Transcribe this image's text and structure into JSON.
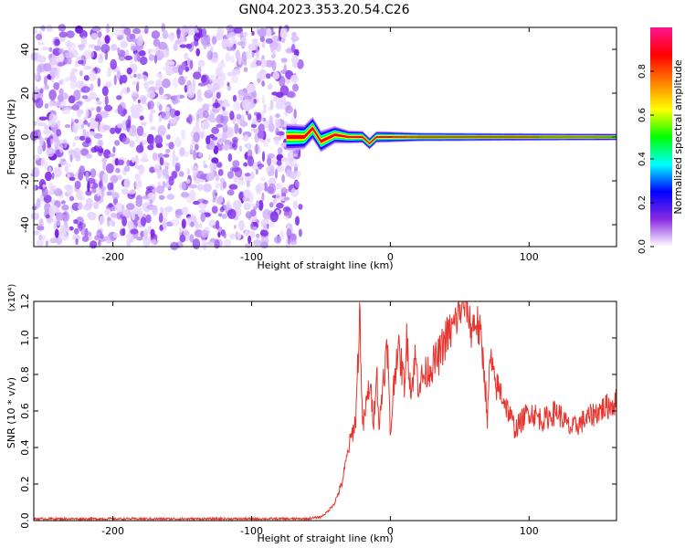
{
  "figure": {
    "title": "GN04.2023.353.20.54.C26"
  },
  "chart_data": [
    {
      "type": "heatmap",
      "xlabel": "Height of straight line (km)",
      "ylabel": "Frequency (Hz)",
      "xlim": [
        -257,
        163
      ],
      "ylim": [
        -50,
        50
      ],
      "xticks": [
        -200,
        -100,
        0,
        100
      ],
      "xtick_labels": [
        "-200",
        "-100",
        "0",
        "100"
      ],
      "yticks": [
        -40,
        -20,
        0,
        20,
        40
      ],
      "ytick_labels": [
        "-40",
        "-20",
        "0",
        "20",
        "40"
      ],
      "colorbar": {
        "label": "Normalized spectral amplitude",
        "range": [
          0,
          1
        ],
        "ticks": [
          0.0,
          0.2,
          0.4,
          0.6,
          0.8
        ],
        "tick_labels": [
          "0.0",
          "0.2",
          "0.4",
          "0.6",
          "0.8"
        ],
        "colors": [
          "#ffffff",
          "#8a2be2",
          "#0000ff",
          "#00ffff",
          "#00ff00",
          "#ffff00",
          "#ff7f00",
          "#ff0000",
          "#ff1493"
        ]
      },
      "noise_region_x": [
        -257,
        -70
      ],
      "signal_band": {
        "x_start": -75,
        "x_end": 163,
        "center_freq": [
          [
            -72,
            0
          ],
          [
            -62,
            0
          ],
          [
            -56,
            4
          ],
          [
            -50,
            -2
          ],
          [
            -40,
            1
          ],
          [
            -30,
            0
          ],
          [
            -20,
            0
          ],
          [
            -15,
            -3
          ],
          [
            -10,
            0
          ],
          [
            0,
            0
          ],
          [
            20,
            0
          ],
          [
            163,
            0
          ]
        ],
        "half_width_hz": [
          [
            -72,
            6
          ],
          [
            -50,
            5
          ],
          [
            -30,
            3
          ],
          [
            0,
            2.5
          ],
          [
            20,
            2
          ],
          [
            163,
            1.5
          ]
        ]
      }
    },
    {
      "type": "line",
      "xlabel": "Height of straight line (km)",
      "ylabel": "SNR (10 * v/v)",
      "y_multiplier": "(x10⁴)",
      "xlim": [
        -257,
        163
      ],
      "ylim": [
        0,
        1.2
      ],
      "xticks": [
        -200,
        -100,
        0,
        100
      ],
      "xtick_labels": [
        "-200",
        "-100",
        "0",
        "100"
      ],
      "yticks": [
        0.0,
        0.2,
        0.4,
        0.6,
        0.8,
        1.0,
        1.2
      ],
      "ytick_labels": [
        "0.0",
        "0.2",
        "0.4",
        "0.6",
        "0.8",
        "1.0",
        "1.2"
      ],
      "line_color": "#e8342c",
      "series": [
        {
          "x": [
            -257,
            -230,
            -200,
            -170,
            -140,
            -110,
            -80,
            -60,
            -50,
            -45,
            -40,
            -35,
            -30,
            -25,
            -22,
            -20,
            -18,
            -15,
            -12,
            -10,
            -8,
            -5,
            -2,
            0,
            2,
            5,
            8,
            10,
            12,
            15,
            18,
            20,
            25,
            30,
            35,
            40,
            45,
            50,
            55,
            58,
            62,
            65,
            68,
            70,
            72,
            75,
            80,
            85,
            90,
            95,
            100,
            110,
            120,
            130,
            140,
            150,
            163
          ],
          "y": [
            0.01,
            0.01,
            0.01,
            0.01,
            0.01,
            0.01,
            0.01,
            0.01,
            0.02,
            0.05,
            0.1,
            0.2,
            0.4,
            0.55,
            1.15,
            0.5,
            0.6,
            0.75,
            0.55,
            0.85,
            0.5,
            0.8,
            0.95,
            0.45,
            0.7,
            0.95,
            0.85,
            0.75,
            1.0,
            0.7,
            0.9,
            0.75,
            0.8,
            0.85,
            0.9,
            1.0,
            1.05,
            1.15,
            1.2,
            1.05,
            1.1,
            1.0,
            0.8,
            0.55,
            0.9,
            0.75,
            0.7,
            0.6,
            0.5,
            0.55,
            0.6,
            0.55,
            0.6,
            0.5,
            0.55,
            0.6,
            0.65
          ]
        }
      ]
    }
  ]
}
